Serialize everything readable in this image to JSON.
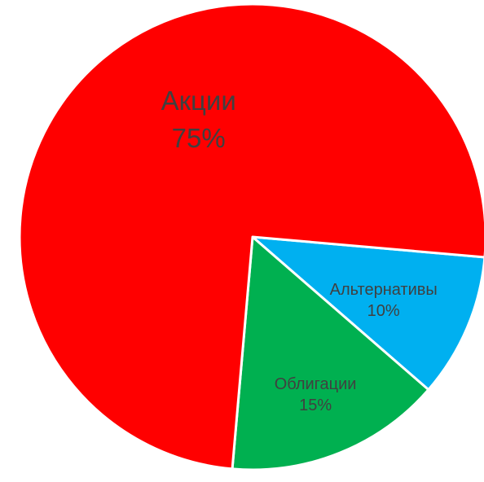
{
  "chart_data": {
    "type": "pie",
    "title": "",
    "start_angle_deg": 95,
    "direction": "clockwise",
    "slices": [
      {
        "name": "Альтернативы",
        "value": 10,
        "value_label": "10%",
        "color": "#00B0F0"
      },
      {
        "name": "Облигации",
        "value": 15,
        "value_label": "15%",
        "color": "#00B050"
      },
      {
        "name": "Акции",
        "value": 75,
        "value_label": "75%",
        "color": "#FF0000"
      }
    ],
    "data_labels": "inside",
    "legend": "none"
  }
}
